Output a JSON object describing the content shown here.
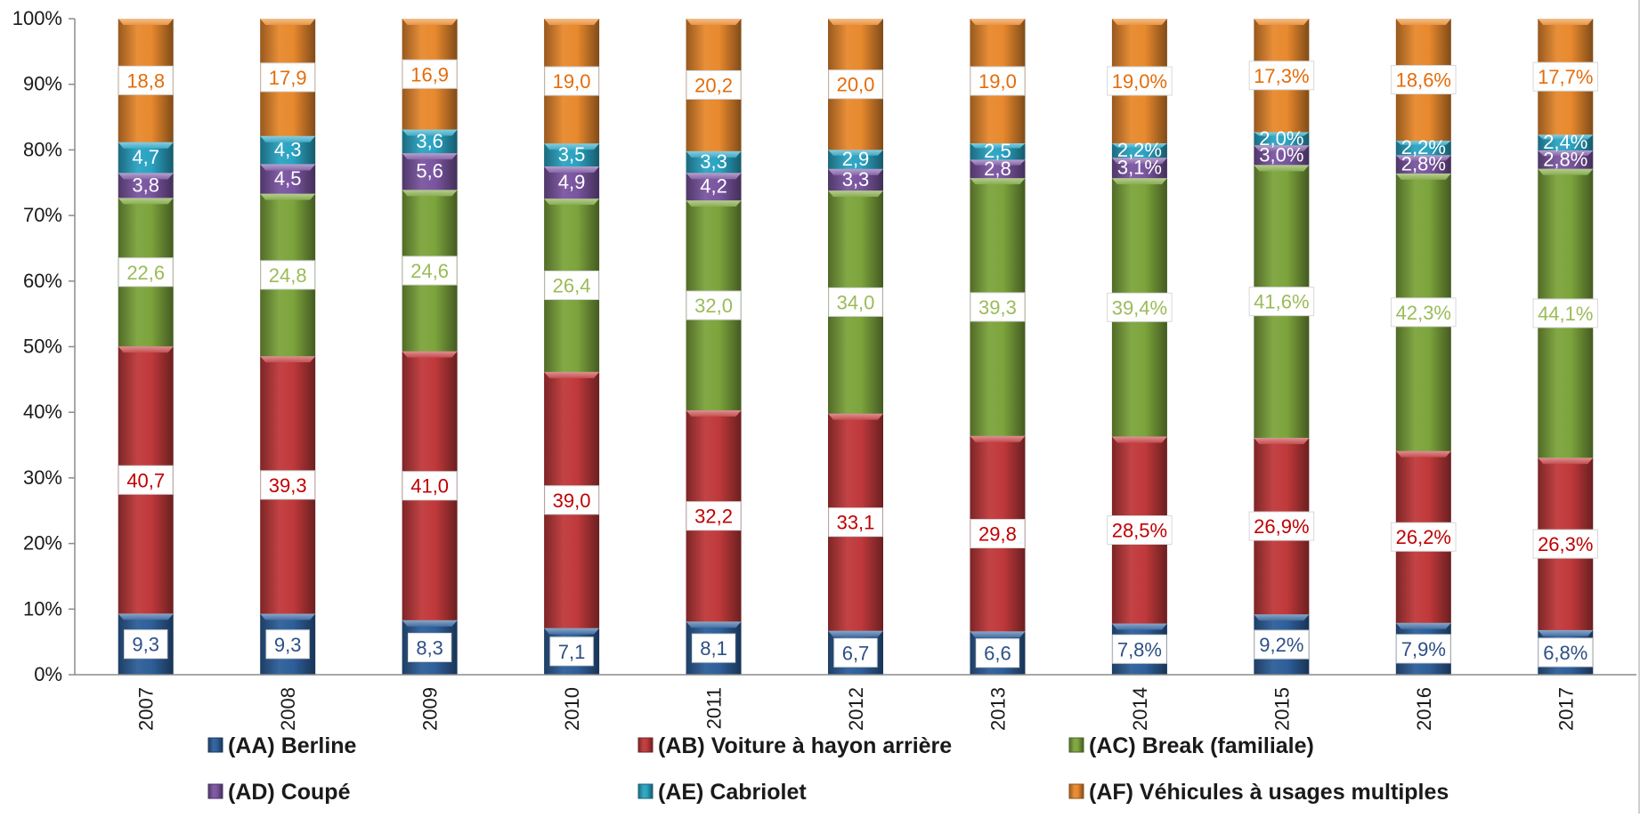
{
  "chart_data": {
    "type": "bar",
    "stacked": true,
    "percent_stacked": true,
    "categories": [
      "2007",
      "2008",
      "2009",
      "2010",
      "2011",
      "2012",
      "2013",
      "2014",
      "2015",
      "2016",
      "2017"
    ],
    "ylim": [
      0,
      100
    ],
    "yticks": [
      "0%",
      "10%",
      "20%",
      "30%",
      "40%",
      "50%",
      "60%",
      "70%",
      "80%",
      "90%",
      "100%"
    ],
    "grid": false,
    "legend_position": "bottom",
    "series": [
      {
        "name": "(AA) Berline",
        "color": "#2e5f9a",
        "values": [
          9.3,
          9.3,
          8.3,
          7.1,
          8.1,
          6.7,
          6.6,
          7.8,
          9.2,
          7.9,
          6.8
        ],
        "labels": [
          "9,3",
          "9,3",
          "8,3",
          "7,1",
          "8,1",
          "6,7",
          "6,6",
          "7,8%",
          "9,2%",
          "7,9%",
          "6,8%"
        ],
        "label_color": "#2e4f86"
      },
      {
        "name": "(AB) Voiture à hayon arrière",
        "color": "#c0393b",
        "values": [
          40.7,
          39.3,
          41.0,
          39.0,
          32.2,
          33.1,
          29.8,
          28.5,
          26.9,
          26.2,
          26.3
        ],
        "labels": [
          "40,7",
          "39,3",
          "41,0",
          "39,0",
          "32,2",
          "33,1",
          "29,8",
          "28,5%",
          "26,9%",
          "26,2%",
          "26,3%"
        ],
        "label_color": "#c00000"
      },
      {
        "name": "(AC) Break (familiale)",
        "color": "#7ca43c",
        "values": [
          22.6,
          24.8,
          24.6,
          26.4,
          32.0,
          34.0,
          39.3,
          39.4,
          41.6,
          42.3,
          44.1
        ],
        "labels": [
          "22,6",
          "24,8",
          "24,6",
          "26,4",
          "32,0",
          "34,0",
          "39,3",
          "39,4%",
          "41,6%",
          "42,3%",
          "44,1%"
        ],
        "label_color": "#9bbb59"
      },
      {
        "name": "(AD) Coupé",
        "color": "#7a55a0",
        "values": [
          3.8,
          4.5,
          5.6,
          4.9,
          4.2,
          3.3,
          2.8,
          3.1,
          3.0,
          2.8,
          2.8
        ],
        "labels": [
          "3,8",
          "4,5",
          "5,6",
          "4,9",
          "4,2",
          "3,3",
          "2,8",
          "3,1%",
          "3,0%",
          "2,8%",
          "2,8%"
        ],
        "label_color": "#ffffff"
      },
      {
        "name": "(AE) Cabriolet",
        "color": "#2aa3c2",
        "values": [
          4.7,
          4.3,
          3.6,
          3.5,
          3.3,
          2.9,
          2.5,
          2.2,
          2.0,
          2.2,
          2.4
        ],
        "labels": [
          "4,7",
          "4,3",
          "3,6",
          "3,5",
          "3,3",
          "2,9",
          "2,5",
          "2,2%",
          "2,0%",
          "2,2%",
          "2,4%"
        ],
        "label_color": "#ffffff"
      },
      {
        "name": "(AF) Véhicules à usages multiples",
        "color": "#e8892e",
        "values": [
          18.8,
          17.9,
          16.9,
          19.0,
          20.2,
          20.0,
          19.0,
          19.0,
          17.3,
          18.6,
          17.7
        ],
        "labels": [
          "18,8",
          "17,9",
          "16,9",
          "19,0",
          "20,2",
          "20,0",
          "19,0",
          "19,0%",
          "17,3%",
          "18,6%",
          "17,7%"
        ],
        "label_color": "#e46c0a"
      }
    ]
  }
}
